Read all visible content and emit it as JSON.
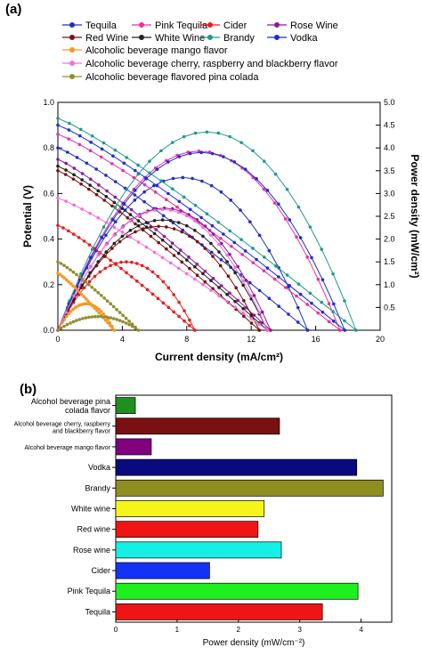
{
  "chart_data": [
    {
      "panel_label": "(a)",
      "type": "line",
      "xlabel": "Current density (mA/cm²)",
      "ylabel": "Potential (V)",
      "y2label": "Power density (mW/cm²)",
      "xlim": [
        0,
        20
      ],
      "ylim": [
        0,
        1.0
      ],
      "y2lim": [
        0,
        5.0
      ],
      "xticks": [
        "0",
        "4",
        "8",
        "12",
        "16",
        "20"
      ],
      "yticks": [
        "0.0",
        "0.2",
        "0.4",
        "0.6",
        "0.8",
        "1.0"
      ],
      "y2ticks": [
        "0.5",
        "1.0",
        "1.5",
        "2.0",
        "2.5",
        "3.0",
        "3.5",
        "4.0",
        "4.5",
        "5.0"
      ],
      "legend_position": "top",
      "series": [
        {
          "name": "Tequila",
          "color": "#1f2fbf",
          "ocv": 0.8,
          "isc": 15.5,
          "pmax": 3.35
        },
        {
          "name": "Pink Tequila",
          "color": "#e8329b",
          "ocv": 0.86,
          "isc": 17.5,
          "pmax": 3.93
        },
        {
          "name": "Cider",
          "color": "#e81c1c",
          "ocv": 0.46,
          "isc": 8.5,
          "pmax": 1.5
        },
        {
          "name": "Rose Wine",
          "color": "#8b1a9a",
          "ocv": 0.75,
          "isc": 13.2,
          "pmax": 2.68
        },
        {
          "name": "Red Wine",
          "color": "#7a1010",
          "ocv": 0.7,
          "isc": 12.5,
          "pmax": 2.28
        },
        {
          "name": "White Wine",
          "color": "#222222",
          "ocv": 0.72,
          "isc": 13.0,
          "pmax": 2.42
        },
        {
          "name": "Brandy",
          "color": "#1f9a8e",
          "ocv": 0.93,
          "isc": 18.5,
          "pmax": 4.35
        },
        {
          "name": "Vodka",
          "color": "#1a2fd6",
          "ocv": 0.9,
          "isc": 17.8,
          "pmax": 3.9
        },
        {
          "name": "Alcoholic beverage mango flavor",
          "color": "#f39a28",
          "ocv": 0.25,
          "isc": 3.5,
          "pmax": 0.58
        },
        {
          "name": "Alcoholic beverage cherry, raspberry  and blackberry flavor",
          "color": "#f070dc",
          "ocv": 0.58,
          "isc": 13.0,
          "pmax": 2.65
        },
        {
          "name": "Alcoholic beverage flavored pina colada",
          "color": "#8f8f2f",
          "ocv": 0.3,
          "isc": 5.0,
          "pmax": 0.3
        }
      ]
    },
    {
      "panel_label": "(b)",
      "type": "bar",
      "orientation": "horizontal",
      "xlabel": "Power density (mW/cm⁻²)",
      "xlim": [
        0,
        4.5
      ],
      "xticks": [
        "0",
        "1",
        "2",
        "3",
        "4"
      ],
      "categories": [
        "Alcohol beverage pina colada flavor",
        "Alcohol beverage cherry, raspberry and blackberry flavor",
        "Alcohol beverage mango flavor",
        "Vodka",
        "Brandy",
        "White wine",
        "Red wine",
        "Rose wine",
        "Cider",
        "Pink Tequila",
        "Tequila"
      ],
      "values": [
        0.32,
        2.67,
        0.58,
        3.93,
        4.36,
        2.42,
        2.32,
        2.7,
        1.53,
        3.95,
        3.37
      ],
      "colors": [
        "#1f8f1f",
        "#7a1010",
        "#800080",
        "#0a0a80",
        "#8f8f1f",
        "#f5f51a",
        "#f01414",
        "#14f0e6",
        "#1432f5",
        "#1ef01e",
        "#f01414"
      ]
    }
  ]
}
